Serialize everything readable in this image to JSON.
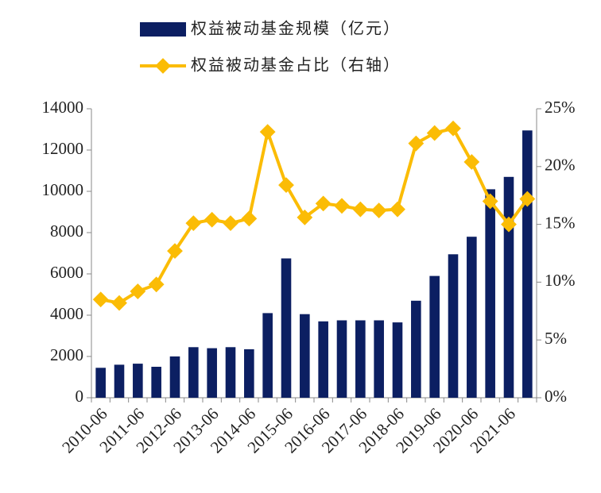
{
  "chart_data": {
    "type": "bar_line",
    "categories": [
      "2010-06",
      null,
      "2011-06",
      null,
      "2012-06",
      null,
      "2013-06",
      null,
      "2014-06",
      null,
      "2015-06",
      null,
      "2016-06",
      null,
      "2017-06",
      null,
      "2018-06",
      null,
      "2019-06",
      null,
      "2020-06",
      null,
      "2021-06",
      null
    ],
    "series": [
      {
        "name": "权益被动基金规模（亿元）",
        "type": "bar",
        "color": "#0c1f62",
        "values": [
          1450,
          1600,
          1650,
          1500,
          2000,
          2450,
          2400,
          2450,
          2350,
          4100,
          6750,
          4050,
          3700,
          3750,
          3750,
          3750,
          3650,
          4700,
          5900,
          6950,
          7800,
          10100,
          10700,
          12950
        ]
      },
      {
        "name": "权益被动基金占比（右轴）",
        "type": "line",
        "axis": "y2",
        "color": "#fbbc05",
        "values": [
          8.5,
          8.2,
          9.2,
          9.8,
          12.7,
          15.1,
          15.4,
          15.1,
          15.5,
          23.0,
          18.4,
          15.6,
          16.8,
          16.6,
          16.3,
          16.2,
          16.3,
          22.0,
          22.9,
          23.3,
          20.4,
          17.0,
          15.0,
          17.2
        ]
      }
    ],
    "ylim": [
      0,
      14000
    ],
    "yticks": [
      0,
      2000,
      4000,
      6000,
      8000,
      10000,
      12000,
      14000
    ],
    "y2lim": [
      0,
      25
    ],
    "y2ticks": [
      {
        "value": 0,
        "label": "0%"
      },
      {
        "value": 5,
        "label": "5%"
      },
      {
        "value": 10,
        "label": "10%"
      },
      {
        "value": 15,
        "label": "15%"
      },
      {
        "value": 20,
        "label": "20%"
      },
      {
        "value": 25,
        "label": "25%"
      }
    ],
    "legend": "top"
  }
}
